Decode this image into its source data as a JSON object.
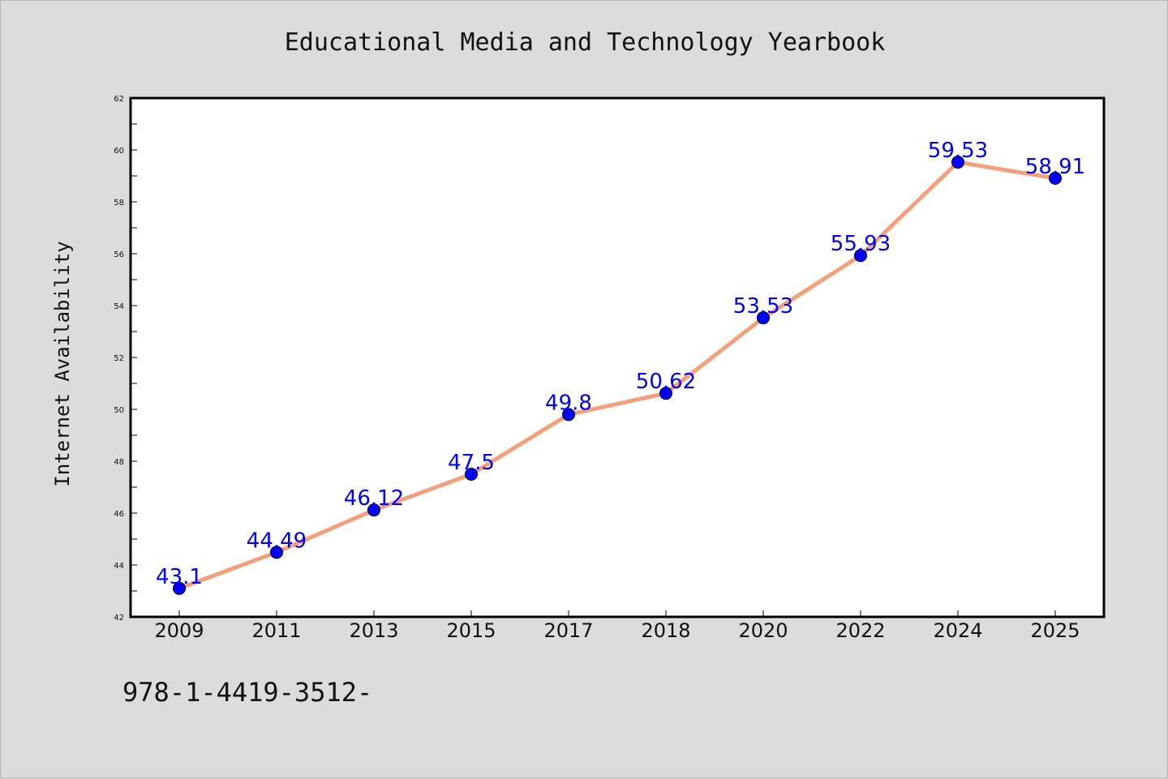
{
  "chart_data": {
    "type": "line",
    "title": "Educational Media and Technology Yearbook",
    "xlabel": "",
    "ylabel": "Internet Availability",
    "categories": [
      "2009",
      "2011",
      "2013",
      "2015",
      "2017",
      "2018",
      "2020",
      "2022",
      "2024",
      "2025"
    ],
    "series": [
      {
        "values": [
          43.1,
          44.49,
          46.12,
          47.5,
          49.8,
          50.62,
          53.53,
          55.93,
          59.53,
          58.91
        ],
        "labels": [
          "43.1",
          "44.49",
          "46.12",
          "47.5",
          "49.8",
          "50.62",
          "53.53",
          "55.93",
          "59.53",
          "58.91"
        ],
        "line_color": "#f4a07a",
        "marker_color": "#0000ff"
      }
    ],
    "ylim": [
      42,
      62
    ],
    "y_ticks": [
      "42",
      "44",
      "46",
      "48",
      "50",
      "52",
      "54",
      "56",
      "58",
      "60",
      "62"
    ],
    "grid": false,
    "legend": "none"
  },
  "footnote": "978-1-4419-3512-"
}
